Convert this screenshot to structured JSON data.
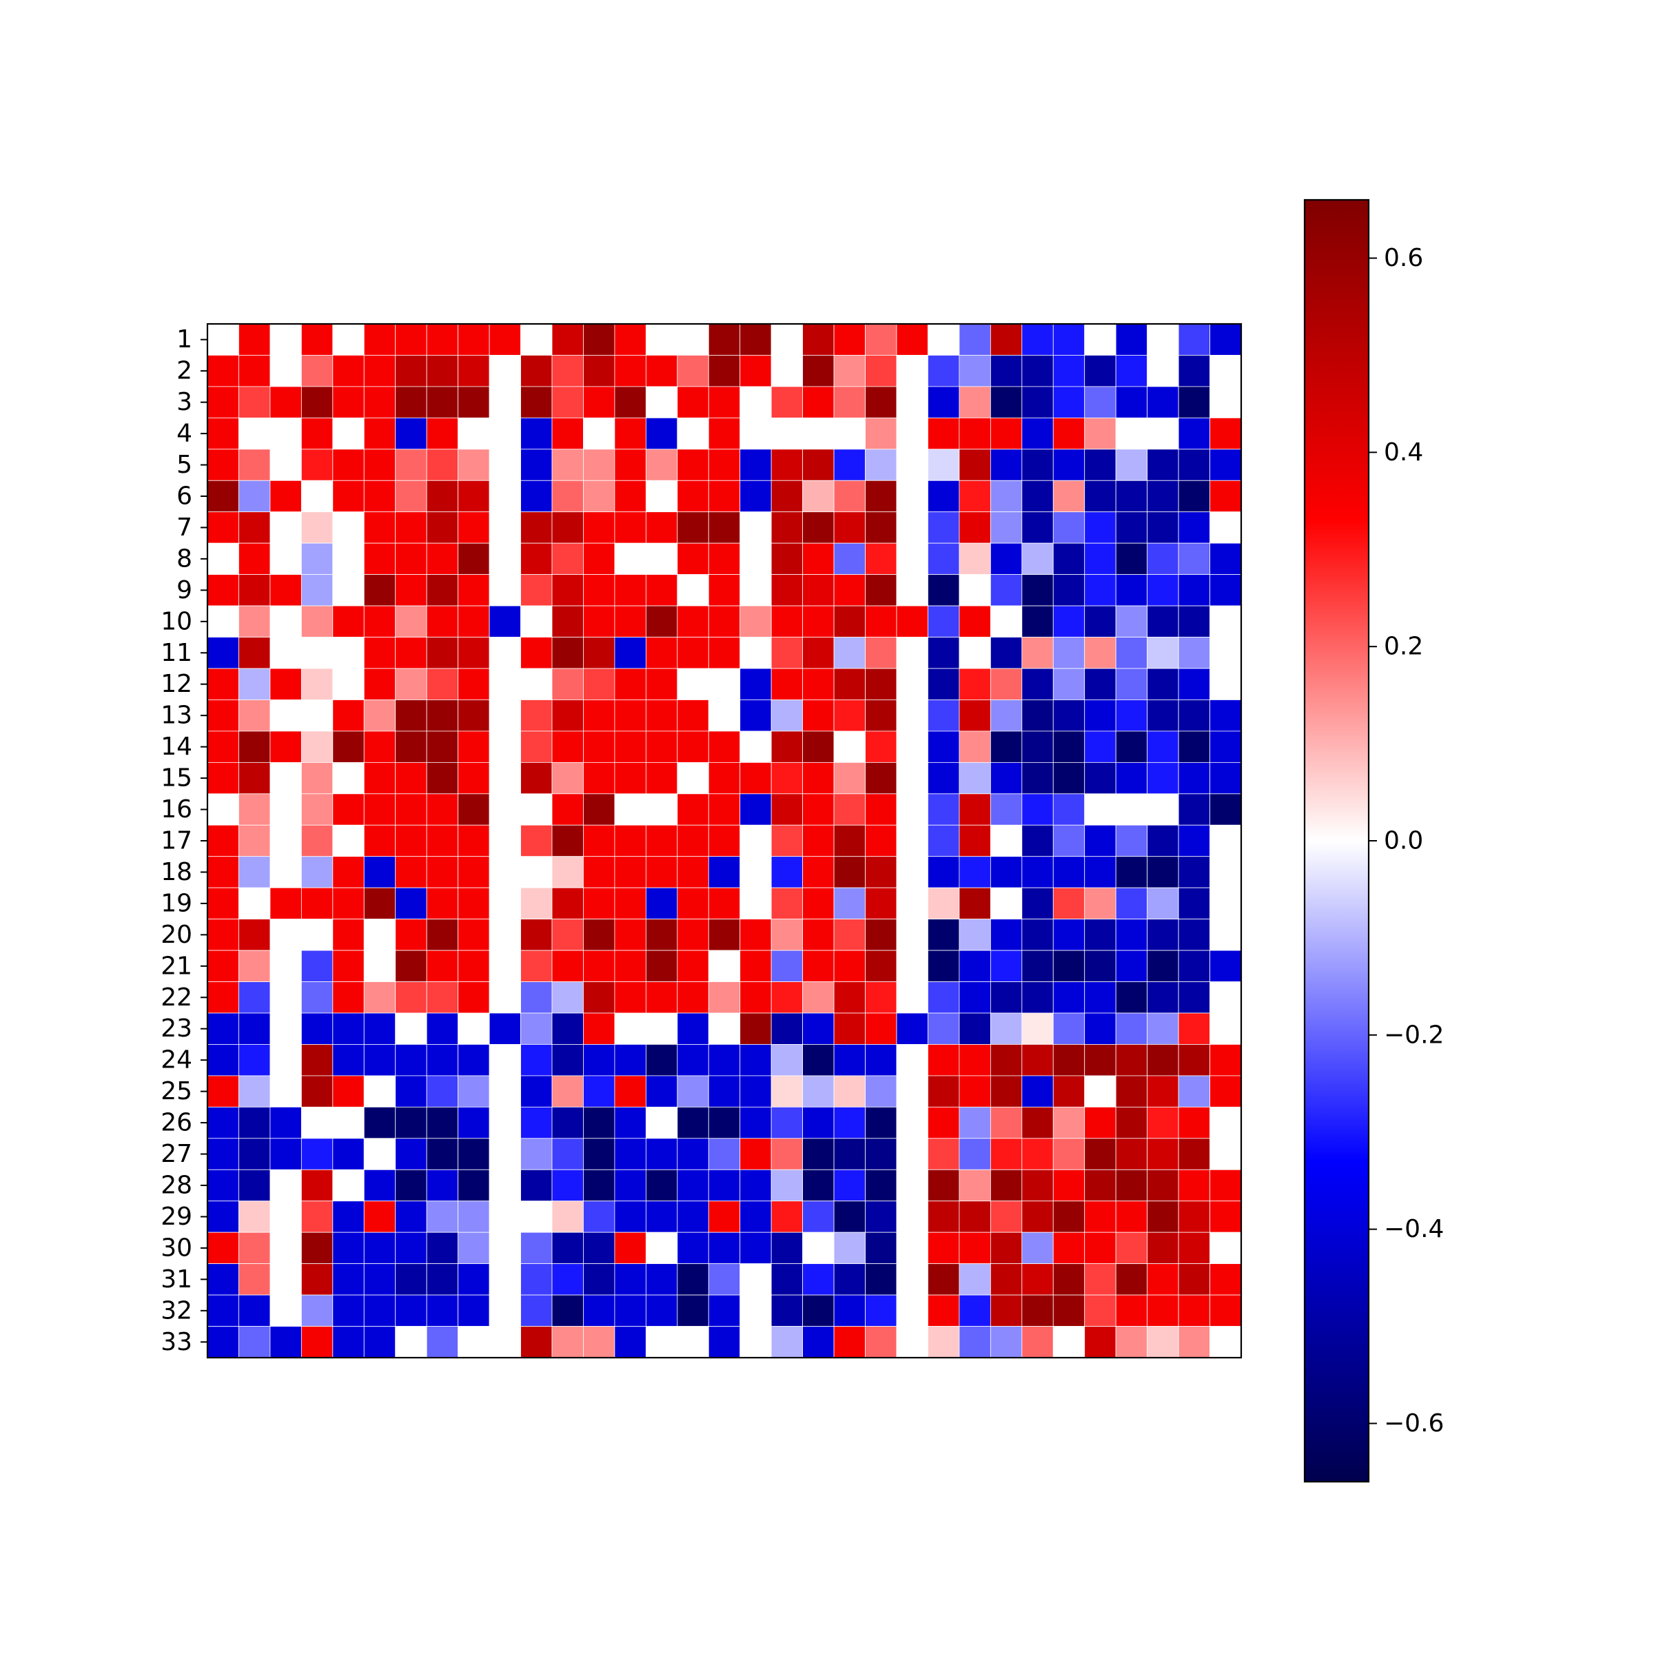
{
  "chart_data": {
    "type": "heatmap",
    "title": "",
    "xlabel": "",
    "ylabel": "",
    "rows": [
      "1",
      "2",
      "3",
      "4",
      "5",
      "6",
      "7",
      "8",
      "9",
      "10",
      "11",
      "12",
      "13",
      "14",
      "15",
      "16",
      "17",
      "18",
      "19",
      "20",
      "21",
      "22",
      "23",
      "24",
      "25",
      "26",
      "27",
      "28",
      "29",
      "30",
      "31",
      "32",
      "33"
    ],
    "columns": 33,
    "x_tick_labels_visible": false,
    "colormap": "seismic",
    "color_range": [
      -0.66,
      0.66
    ],
    "colorbar": {
      "position": "right",
      "ticks": [
        0.6,
        0.4,
        0.2,
        0.0,
        -0.2,
        -0.4,
        -0.6
      ],
      "tick_labels": [
        "0.6",
        "0.4",
        "0.2",
        "0.0",
        "−0.2",
        "−0.4",
        "−0.6"
      ]
    },
    "values": [
      [
        0,
        0.35,
        0,
        0.35,
        0,
        0.35,
        0.35,
        0.35,
        0.35,
        0.35,
        0,
        0.45,
        0.6,
        0.35,
        0,
        0,
        0.6,
        0.6,
        0,
        0.5,
        0.35,
        0.2,
        0.35,
        0,
        -0.2,
        0.5,
        -0.3,
        -0.3,
        0,
        -0.4,
        0,
        -0.25,
        -0.4
      ],
      [
        0.35,
        0.35,
        0,
        0.2,
        0.35,
        0.35,
        0.5,
        0.5,
        0.45,
        0,
        0.5,
        0.25,
        0.5,
        0.35,
        0.35,
        0.2,
        0.6,
        0.35,
        0,
        0.6,
        0.15,
        0.25,
        0,
        -0.25,
        -0.15,
        -0.5,
        -0.5,
        -0.3,
        -0.5,
        -0.3,
        0,
        -0.5,
        0
      ],
      [
        0.35,
        0.25,
        0.35,
        0.6,
        0.35,
        0.35,
        0.6,
        0.6,
        0.6,
        0,
        0.6,
        0.25,
        0.35,
        0.6,
        0,
        0.35,
        0.35,
        0,
        0.25,
        0.35,
        0.2,
        0.6,
        0,
        -0.4,
        0.15,
        -0.6,
        -0.5,
        -0.3,
        -0.2,
        -0.4,
        -0.4,
        -0.6,
        0
      ],
      [
        0.35,
        0,
        0,
        0.35,
        0,
        0.35,
        -0.4,
        0.35,
        0,
        0,
        -0.4,
        0.35,
        0,
        0.35,
        -0.4,
        0,
        0.35,
        0,
        0,
        0,
        0,
        0.15,
        0,
        0.35,
        0.35,
        0.35,
        -0.4,
        0.35,
        0.15,
        0,
        0,
        -0.4,
        0.35
      ],
      [
        0.35,
        0.2,
        0,
        0.3,
        0.35,
        0.35,
        0.2,
        0.25,
        0.15,
        0,
        -0.4,
        0.15,
        0.15,
        0.35,
        0.15,
        0.35,
        0.35,
        -0.4,
        0.45,
        0.5,
        -0.3,
        -0.1,
        0,
        -0.05,
        0.5,
        -0.4,
        -0.5,
        -0.4,
        -0.5,
        -0.1,
        -0.5,
        -0.5,
        -0.4
      ],
      [
        0.6,
        -0.15,
        0.35,
        0,
        0.35,
        0.35,
        0.2,
        0.5,
        0.45,
        0,
        -0.4,
        0.2,
        0.15,
        0.35,
        0,
        0.35,
        0.35,
        -0.4,
        0.5,
        0.1,
        0.2,
        0.6,
        0,
        -0.4,
        0.3,
        -0.15,
        -0.5,
        0.15,
        -0.5,
        -0.5,
        -0.5,
        -0.6,
        0.35
      ],
      [
        0.35,
        0.45,
        0,
        0.07,
        0,
        0.35,
        0.35,
        0.5,
        0.35,
        0,
        0.5,
        0.5,
        0.35,
        0.35,
        0.35,
        0.6,
        0.6,
        0,
        0.5,
        0.6,
        0.45,
        0.6,
        0,
        -0.25,
        0.4,
        -0.15,
        -0.5,
        -0.2,
        -0.3,
        -0.5,
        -0.5,
        -0.4,
        0
      ],
      [
        0,
        0.35,
        0,
        -0.12,
        0,
        0.35,
        0.35,
        0.35,
        0.6,
        0,
        0.45,
        0.25,
        0.35,
        0,
        0,
        0.35,
        0.35,
        0,
        0.5,
        0.35,
        -0.2,
        0.3,
        0,
        -0.25,
        0.07,
        -0.4,
        -0.1,
        -0.5,
        -0.3,
        -0.6,
        -0.25,
        -0.2,
        -0.4
      ],
      [
        0.35,
        0.45,
        0.35,
        -0.12,
        0,
        0.6,
        0.35,
        0.55,
        0.35,
        0,
        0.25,
        0.45,
        0.35,
        0.35,
        0.35,
        0,
        0.35,
        0,
        0.45,
        0.4,
        0.35,
        0.6,
        0,
        -0.6,
        0,
        -0.25,
        -0.6,
        -0.5,
        -0.3,
        -0.4,
        -0.3,
        -0.4,
        -0.4
      ],
      [
        0,
        0.15,
        0,
        0.15,
        0.35,
        0.35,
        0.15,
        0.35,
        0.35,
        -0.4,
        0,
        0.5,
        0.35,
        0.35,
        0.6,
        0.35,
        0.35,
        0.15,
        0.35,
        0.35,
        0.5,
        0.35,
        0.35,
        -0.25,
        0.35,
        0,
        -0.6,
        -0.3,
        -0.5,
        -0.15,
        -0.5,
        -0.5,
        0
      ],
      [
        -0.4,
        0.5,
        0,
        0,
        0,
        0.35,
        0.35,
        0.5,
        0.45,
        0,
        0.35,
        0.6,
        0.5,
        -0.4,
        0.35,
        0.35,
        0.35,
        0,
        0.25,
        0.45,
        -0.1,
        0.2,
        0,
        -0.5,
        0,
        -0.5,
        0.15,
        -0.15,
        0.15,
        -0.2,
        -0.07,
        -0.15,
        0
      ],
      [
        0.35,
        -0.1,
        0.35,
        0.07,
        0,
        0.35,
        0.15,
        0.25,
        0.35,
        0,
        0,
        0.2,
        0.25,
        0.35,
        0.35,
        0,
        0,
        -0.4,
        0.35,
        0.35,
        0.5,
        0.55,
        0,
        -0.5,
        0.3,
        0.2,
        -0.5,
        -0.15,
        -0.5,
        -0.2,
        -0.5,
        -0.4,
        0
      ],
      [
        0.35,
        0.15,
        0,
        0,
        0.35,
        0.15,
        0.6,
        0.6,
        0.55,
        0,
        0.25,
        0.45,
        0.35,
        0.35,
        0.35,
        0.35,
        0,
        -0.4,
        -0.1,
        0.35,
        0.3,
        0.55,
        0,
        -0.25,
        0.45,
        -0.15,
        -0.55,
        -0.5,
        -0.4,
        -0.3,
        -0.5,
        -0.5,
        -0.4
      ],
      [
        0.35,
        0.6,
        0.35,
        0.07,
        0.6,
        0.35,
        0.6,
        0.6,
        0.35,
        0,
        0.25,
        0.35,
        0.35,
        0.35,
        0.35,
        0.35,
        0.35,
        0,
        0.5,
        0.6,
        0,
        0.3,
        0,
        -0.4,
        0.15,
        -0.6,
        -0.55,
        -0.6,
        -0.3,
        -0.6,
        -0.3,
        -0.6,
        -0.4
      ],
      [
        0.35,
        0.5,
        0,
        0.15,
        0,
        0.35,
        0.35,
        0.6,
        0.35,
        0,
        0.5,
        0.15,
        0.35,
        0.35,
        0.35,
        0,
        0.35,
        0.35,
        0.3,
        0.35,
        0.15,
        0.6,
        0,
        -0.4,
        -0.1,
        -0.4,
        -0.55,
        -0.6,
        -0.5,
        -0.4,
        -0.3,
        -0.4,
        -0.4
      ],
      [
        0,
        0.15,
        0,
        0.15,
        0.35,
        0.35,
        0.35,
        0.35,
        0.6,
        0,
        0,
        0.35,
        0.6,
        0,
        0,
        0.35,
        0.35,
        -0.4,
        0.45,
        0.35,
        0.25,
        0.35,
        0,
        -0.25,
        0.45,
        -0.2,
        -0.3,
        -0.25,
        0,
        0,
        0,
        -0.5,
        -0.6
      ],
      [
        0.35,
        0.15,
        0,
        0.2,
        0,
        0.35,
        0.35,
        0.35,
        0.35,
        0,
        0.25,
        0.6,
        0.35,
        0.35,
        0.35,
        0.35,
        0.35,
        0,
        0.25,
        0.35,
        0.55,
        0.35,
        0,
        -0.25,
        0.45,
        0,
        -0.5,
        -0.2,
        -0.4,
        -0.2,
        -0.5,
        -0.4,
        0
      ],
      [
        0.35,
        -0.12,
        0,
        -0.12,
        0.35,
        -0.4,
        0.35,
        0.35,
        0.35,
        0,
        0,
        0.07,
        0.35,
        0.35,
        0.35,
        0.35,
        -0.4,
        0,
        -0.3,
        0.35,
        0.6,
        0.5,
        0,
        -0.4,
        -0.3,
        -0.4,
        -0.4,
        -0.4,
        -0.4,
        -0.6,
        -0.6,
        -0.5,
        0
      ],
      [
        0.35,
        0,
        0.35,
        0.35,
        0.35,
        0.6,
        -0.4,
        0.35,
        0.35,
        0,
        0.07,
        0.45,
        0.35,
        0.35,
        -0.4,
        0.35,
        0.35,
        0,
        0.25,
        0.35,
        -0.15,
        0.45,
        0,
        0.07,
        0.55,
        0,
        -0.5,
        0.25,
        0.15,
        -0.25,
        -0.12,
        -0.5,
        0
      ],
      [
        0.35,
        0.45,
        0,
        0,
        0.35,
        0,
        0.35,
        0.6,
        0.35,
        0,
        0.5,
        0.25,
        0.6,
        0.35,
        0.6,
        0.35,
        0.6,
        0.35,
        0.15,
        0.35,
        0.25,
        0.6,
        0,
        -0.6,
        -0.1,
        -0.4,
        -0.5,
        -0.4,
        -0.5,
        -0.4,
        -0.5,
        -0.5,
        0
      ],
      [
        0.35,
        0.15,
        0,
        -0.25,
        0.35,
        0,
        0.6,
        0.35,
        0.35,
        0,
        0.25,
        0.35,
        0.35,
        0.35,
        0.6,
        0.35,
        0,
        0.35,
        -0.2,
        0.35,
        0.35,
        0.55,
        0,
        -0.6,
        -0.4,
        -0.3,
        -0.55,
        -0.6,
        -0.55,
        -0.4,
        -0.6,
        -0.5,
        -0.4
      ],
      [
        0.35,
        -0.25,
        0,
        -0.2,
        0.35,
        0.15,
        0.25,
        0.25,
        0.35,
        0,
        -0.2,
        -0.1,
        0.5,
        0.35,
        0.35,
        0.35,
        0.15,
        0.35,
        0.3,
        0.15,
        0.45,
        0.3,
        0,
        -0.25,
        -0.4,
        -0.5,
        -0.5,
        -0.4,
        -0.4,
        -0.6,
        -0.5,
        -0.5,
        0
      ],
      [
        -0.4,
        -0.4,
        0,
        -0.4,
        -0.4,
        -0.4,
        0,
        -0.4,
        0,
        -0.4,
        -0.15,
        -0.5,
        0.35,
        0,
        0,
        -0.4,
        0,
        0.6,
        -0.5,
        -0.4,
        0.45,
        0.35,
        -0.4,
        -0.2,
        -0.5,
        -0.1,
        0.03,
        -0.2,
        -0.4,
        -0.2,
        -0.15,
        0.3,
        0
      ],
      [
        -0.4,
        -0.3,
        0,
        0.55,
        -0.4,
        -0.4,
        -0.4,
        -0.4,
        -0.4,
        0,
        -0.3,
        -0.5,
        -0.4,
        -0.4,
        -0.6,
        -0.4,
        -0.4,
        -0.4,
        -0.1,
        -0.6,
        -0.4,
        -0.4,
        0,
        0.35,
        0.35,
        0.55,
        0.5,
        0.6,
        0.6,
        0.55,
        0.6,
        0.55,
        0.35
      ],
      [
        0.35,
        -0.1,
        0,
        0.55,
        0.35,
        0,
        -0.4,
        -0.25,
        -0.15,
        0,
        -0.4,
        0.15,
        -0.3,
        0.35,
        -0.4,
        -0.15,
        -0.4,
        -0.4,
        0.05,
        -0.1,
        0.07,
        -0.15,
        0,
        0.5,
        0.35,
        0.55,
        -0.4,
        0.5,
        0,
        0.55,
        0.45,
        -0.15,
        0.35
      ],
      [
        -0.4,
        -0.5,
        -0.4,
        0,
        0,
        -0.6,
        -0.6,
        -0.6,
        -0.4,
        0,
        -0.3,
        -0.5,
        -0.6,
        -0.4,
        0,
        -0.6,
        -0.6,
        -0.4,
        -0.25,
        -0.4,
        -0.3,
        -0.6,
        0,
        0.35,
        -0.15,
        0.2,
        0.55,
        0.15,
        0.35,
        0.55,
        0.3,
        0.35,
        0
      ],
      [
        -0.4,
        -0.5,
        -0.4,
        -0.3,
        -0.4,
        0,
        -0.4,
        -0.6,
        -0.6,
        0,
        -0.15,
        -0.25,
        -0.6,
        -0.4,
        -0.4,
        -0.4,
        -0.2,
        0.35,
        0.2,
        -0.6,
        -0.55,
        -0.55,
        0,
        0.25,
        -0.2,
        0.3,
        0.3,
        0.2,
        0.6,
        0.5,
        0.45,
        0.55,
        0
      ],
      [
        -0.4,
        -0.5,
        0,
        0.45,
        0,
        -0.4,
        -0.6,
        -0.4,
        -0.6,
        0,
        -0.5,
        -0.3,
        -0.6,
        -0.4,
        -0.6,
        -0.4,
        -0.4,
        -0.4,
        -0.1,
        -0.6,
        -0.3,
        -0.6,
        0,
        0.6,
        0.15,
        0.6,
        0.5,
        0.35,
        0.55,
        0.6,
        0.55,
        0.35,
        0.35
      ],
      [
        -0.4,
        0.07,
        0,
        0.25,
        -0.4,
        0.35,
        -0.4,
        -0.15,
        -0.15,
        0,
        0,
        0.07,
        -0.25,
        -0.4,
        -0.4,
        -0.4,
        0.35,
        -0.4,
        0.3,
        -0.25,
        -0.6,
        -0.5,
        0,
        0.5,
        0.5,
        0.25,
        0.5,
        0.6,
        0.35,
        0.35,
        0.6,
        0.45,
        0.35
      ],
      [
        0.35,
        0.2,
        0,
        0.6,
        -0.4,
        -0.4,
        -0.4,
        -0.5,
        -0.15,
        0,
        -0.2,
        -0.5,
        -0.5,
        0.35,
        0,
        -0.4,
        -0.4,
        -0.4,
        -0.5,
        0,
        -0.1,
        -0.55,
        0,
        0.35,
        0.35,
        0.5,
        -0.15,
        0.35,
        0.35,
        0.25,
        0.5,
        0.45,
        0
      ],
      [
        -0.4,
        0.2,
        0,
        0.5,
        -0.4,
        -0.4,
        -0.5,
        -0.5,
        -0.4,
        0,
        -0.25,
        -0.3,
        -0.5,
        -0.4,
        -0.4,
        -0.6,
        -0.2,
        0,
        -0.5,
        -0.3,
        -0.5,
        -0.6,
        0,
        0.6,
        -0.1,
        0.5,
        0.45,
        0.6,
        0.25,
        0.6,
        0.35,
        0.5,
        0.35
      ],
      [
        -0.4,
        -0.4,
        0,
        -0.15,
        -0.4,
        -0.4,
        -0.4,
        -0.4,
        -0.4,
        0,
        -0.25,
        -0.6,
        -0.4,
        -0.4,
        -0.4,
        -0.6,
        -0.4,
        0,
        -0.5,
        -0.6,
        -0.4,
        -0.3,
        0,
        0.35,
        -0.3,
        0.5,
        0.6,
        0.6,
        0.25,
        0.35,
        0.35,
        0.35,
        0.35
      ],
      [
        -0.4,
        -0.2,
        -0.4,
        0.35,
        -0.4,
        -0.4,
        0,
        -0.2,
        0,
        0,
        0.5,
        0.15,
        0.15,
        -0.4,
        0,
        0,
        -0.4,
        0,
        -0.1,
        -0.4,
        0.35,
        0.2,
        0,
        0.07,
        -0.2,
        -0.15,
        0.2,
        0,
        0.45,
        0.15,
        0.07,
        0.15,
        0
      ]
    ]
  }
}
